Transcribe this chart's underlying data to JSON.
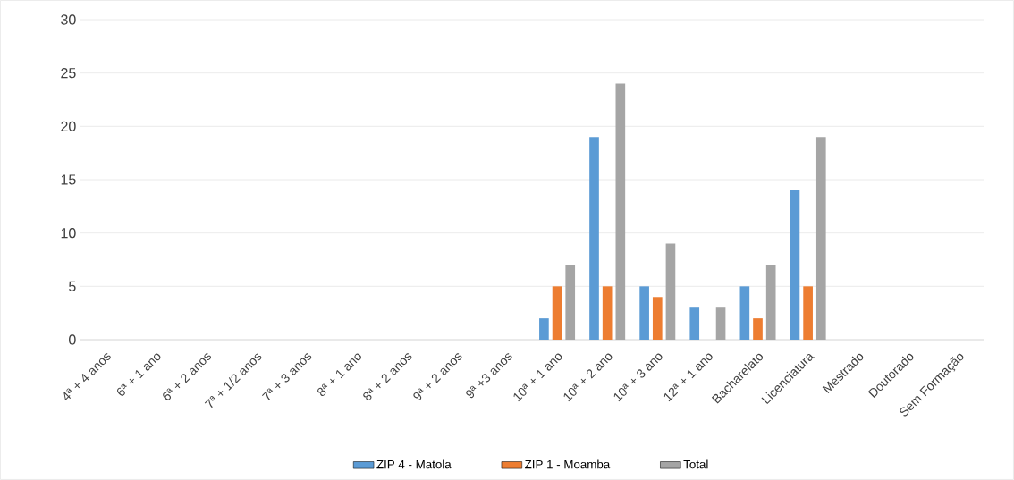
{
  "chart_data": {
    "type": "bar",
    "categories": [
      "4ª + 4 anos",
      "6ª + 1 ano",
      "6ª + 2 anos",
      "7ª + 1/2 anos",
      "7ª + 3 anos",
      "8ª + 1 ano",
      "8ª + 2 anos",
      "9ª + 2 anos",
      "9ª +3 anos",
      "10ª + 1 ano",
      "10ª + 2 ano",
      "10ª + 3 ano",
      "12ª + 1 ano",
      "Bacharelato",
      "Licenciatura",
      "Mestrado",
      "Doutorado",
      "Sem Formação"
    ],
    "series": [
      {
        "name": "ZIP 4 - Matola",
        "color": "#5b9bd5",
        "values": [
          null,
          null,
          null,
          null,
          null,
          null,
          null,
          null,
          null,
          2,
          19,
          5,
          3,
          5,
          14,
          null,
          null,
          null
        ]
      },
      {
        "name": "ZIP 1 - Moamba",
        "color": "#ed7d31",
        "values": [
          null,
          null,
          null,
          null,
          null,
          null,
          null,
          null,
          null,
          5,
          5,
          4,
          0,
          2,
          5,
          null,
          null,
          null
        ]
      },
      {
        "name": "Total",
        "color": "#a5a5a5",
        "values": [
          null,
          null,
          null,
          null,
          null,
          null,
          null,
          null,
          null,
          7,
          24,
          9,
          3,
          7,
          19,
          null,
          null,
          null
        ]
      }
    ],
    "ylim": [
      0,
      30
    ],
    "yticks": [
      0,
      5,
      10,
      15,
      20,
      25,
      30
    ],
    "grid": "y",
    "legend": "bottom"
  }
}
